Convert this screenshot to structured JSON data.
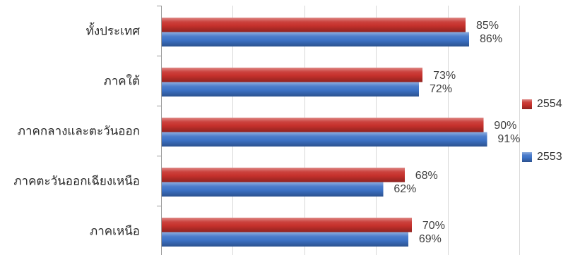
{
  "chart_data": {
    "type": "bar",
    "orientation": "horizontal",
    "categories": [
      "ทั้งประเทศ",
      "ภาคใต้",
      "ภาคกลางและตะวันออก",
      "ภาคตะวันออกเฉียงเหนือ",
      "ภาคเหนือ"
    ],
    "series": [
      {
        "name": "2554",
        "values": [
          85,
          73,
          90,
          68,
          70
        ],
        "data_labels": [
          "85%",
          "73%",
          "90%",
          "68%",
          "70%"
        ],
        "color": "#c6312c"
      },
      {
        "name": "2553",
        "values": [
          86,
          72,
          91,
          62,
          69
        ],
        "data_labels": [
          "86%",
          "72%",
          "91%",
          "62%",
          "69%"
        ],
        "color": "#3d72c6"
      }
    ],
    "xlim": [
      0,
      100
    ],
    "x_major_unit": 20,
    "grid": true,
    "legend_position": "right"
  }
}
